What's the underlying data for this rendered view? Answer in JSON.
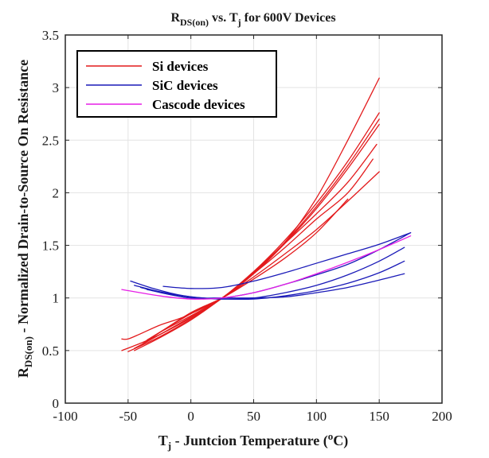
{
  "chart_data": {
    "type": "line",
    "title": "R_DS(on) vs. T_j for 600V Devices",
    "title_parts": {
      "r": "R",
      "r_sub": "DS(on)",
      "mid": " vs. T",
      "t_sub": "j",
      "rest": " for 600V Devices"
    },
    "xlabel": "T_j - Juntcion Temperature (°C)",
    "xlabel_parts": {
      "t": "T",
      "t_sub": "j",
      "mid": " - Juntcion Temperature (",
      "deg_sup": "o",
      "rest": "C)"
    },
    "ylabel": "R_DS(on) - Normalized Drain-to-Source On Resistance",
    "ylabel_parts": {
      "r": "R",
      "r_sub": "DS(on)",
      "rest": " - Normalized Drain-to-Source On Resistance"
    },
    "xlim": [
      -100,
      200
    ],
    "ylim": [
      0,
      3.5
    ],
    "xticks": [
      "-100",
      "-50",
      "0",
      "50",
      "100",
      "150",
      "200"
    ],
    "yticks": [
      "0",
      "0.5",
      "1",
      "1.5",
      "2",
      "2.5",
      "3",
      "3.5"
    ],
    "grid": true,
    "legend_position": "top-left",
    "series": [
      {
        "name": "Si devices",
        "color": "#e31a1c",
        "curves": [
          [
            [
              -55,
              0.61
            ],
            [
              -50,
              0.61
            ],
            [
              -40,
              0.66
            ],
            [
              -25,
              0.74
            ],
            [
              -10,
              0.8
            ],
            [
              0,
              0.85
            ],
            [
              25,
              1.0
            ],
            [
              50,
              1.23
            ],
            [
              75,
              1.53
            ],
            [
              100,
              1.95
            ],
            [
              125,
              2.5
            ],
            [
              150,
              3.09
            ]
          ],
          [
            [
              -55,
              0.5
            ],
            [
              -40,
              0.57
            ],
            [
              -25,
              0.65
            ],
            [
              0,
              0.81
            ],
            [
              25,
              1.0
            ],
            [
              50,
              1.25
            ],
            [
              75,
              1.55
            ],
            [
              100,
              1.9
            ],
            [
              125,
              2.3
            ],
            [
              150,
              2.76
            ]
          ],
          [
            [
              -50,
              0.49
            ],
            [
              -25,
              0.63
            ],
            [
              0,
              0.8
            ],
            [
              25,
              1.0
            ],
            [
              50,
              1.24
            ],
            [
              75,
              1.53
            ],
            [
              100,
              1.87
            ],
            [
              125,
              2.26
            ],
            [
              150,
              2.7
            ]
          ],
          [
            [
              -45,
              0.5
            ],
            [
              -25,
              0.62
            ],
            [
              0,
              0.79
            ],
            [
              25,
              1.0
            ],
            [
              50,
              1.23
            ],
            [
              75,
              1.52
            ],
            [
              100,
              1.85
            ],
            [
              125,
              2.23
            ],
            [
              150,
              2.65
            ]
          ],
          [
            [
              -45,
              0.52
            ],
            [
              -25,
              0.65
            ],
            [
              0,
              0.82
            ],
            [
              25,
              1.0
            ],
            [
              50,
              1.25
            ],
            [
              75,
              1.52
            ],
            [
              100,
              1.8
            ],
            [
              125,
              2.1
            ],
            [
              148,
              2.46
            ]
          ],
          [
            [
              -40,
              0.55
            ],
            [
              -25,
              0.67
            ],
            [
              0,
              0.83
            ],
            [
              25,
              1.0
            ],
            [
              50,
              1.23
            ],
            [
              75,
              1.48
            ],
            [
              100,
              1.75
            ],
            [
              125,
              2.0
            ],
            [
              145,
              2.32
            ]
          ],
          [
            [
              -35,
              0.6
            ],
            [
              0,
              0.85
            ],
            [
              25,
              1.0
            ],
            [
              50,
              1.2
            ],
            [
              75,
              1.42
            ],
            [
              100,
              1.65
            ],
            [
              125,
              1.92
            ],
            [
              150,
              2.2
            ]
          ],
          [
            [
              -30,
              0.63
            ],
            [
              0,
              0.86
            ],
            [
              25,
              1.0
            ],
            [
              50,
              1.18
            ],
            [
              75,
              1.38
            ],
            [
              100,
              1.62
            ],
            [
              125,
              1.94
            ]
          ]
        ]
      },
      {
        "name": "SiC devices",
        "color": "#1a1ab8",
        "curves": [
          [
            [
              -48,
              1.16
            ],
            [
              -30,
              1.09
            ],
            [
              -10,
              1.03
            ],
            [
              10,
              1.0
            ],
            [
              25,
              1.0
            ],
            [
              50,
              1.05
            ],
            [
              75,
              1.13
            ],
            [
              100,
              1.22
            ],
            [
              125,
              1.32
            ],
            [
              150,
              1.46
            ],
            [
              175,
              1.62
            ]
          ],
          [
            [
              -45,
              1.12
            ],
            [
              -25,
              1.06
            ],
            [
              0,
              1.01
            ],
            [
              25,
              0.99
            ],
            [
              50,
              1.0
            ],
            [
              75,
              1.05
            ],
            [
              100,
              1.12
            ],
            [
              125,
              1.22
            ],
            [
              150,
              1.35
            ],
            [
              170,
              1.48
            ]
          ],
          [
            [
              -40,
              1.1
            ],
            [
              -20,
              1.04
            ],
            [
              0,
              1.0
            ],
            [
              25,
              0.99
            ],
            [
              50,
              0.99
            ],
            [
              75,
              1.02
            ],
            [
              100,
              1.07
            ],
            [
              125,
              1.14
            ],
            [
              150,
              1.24
            ],
            [
              170,
              1.35
            ]
          ],
          [
            [
              -35,
              1.08
            ],
            [
              -15,
              1.03
            ],
            [
              0,
              1.0
            ],
            [
              25,
              1.0
            ],
            [
              50,
              1.0
            ],
            [
              75,
              1.01
            ],
            [
              100,
              1.05
            ],
            [
              125,
              1.1
            ],
            [
              150,
              1.17
            ],
            [
              170,
              1.23
            ]
          ],
          [
            [
              -22,
              1.11
            ],
            [
              0,
              1.09
            ],
            [
              25,
              1.1
            ],
            [
              50,
              1.16
            ],
            [
              75,
              1.24
            ],
            [
              100,
              1.33
            ],
            [
              125,
              1.42
            ],
            [
              150,
              1.51
            ],
            [
              175,
              1.62
            ]
          ]
        ]
      },
      {
        "name": "Cascode devices",
        "color": "#e61ee6",
        "curves": [
          [
            [
              -55,
              1.08
            ],
            [
              -25,
              1.02
            ],
            [
              0,
              0.99
            ],
            [
              25,
              1.0
            ],
            [
              50,
              1.05
            ],
            [
              75,
              1.13
            ],
            [
              100,
              1.23
            ],
            [
              125,
              1.34
            ],
            [
              150,
              1.46
            ],
            [
              175,
              1.59
            ]
          ]
        ]
      }
    ]
  }
}
